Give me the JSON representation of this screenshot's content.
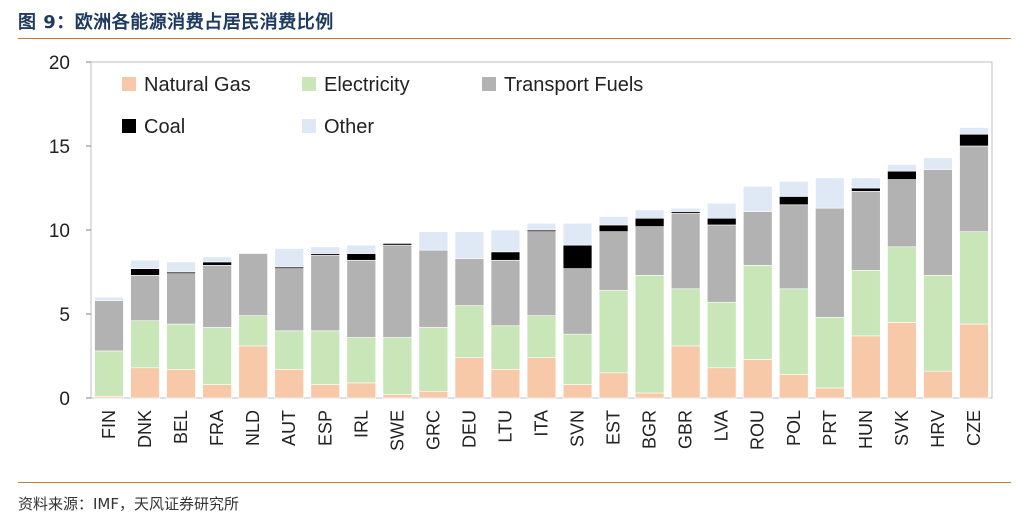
{
  "title": "图 9：欧洲各能源消费占居民消费比例",
  "source": "资料来源：IMF，天风证券研究所",
  "chart_data": {
    "type": "bar",
    "stacked": true,
    "categories": [
      "FIN",
      "DNK",
      "BEL",
      "FRA",
      "NLD",
      "AUT",
      "ESP",
      "IRL",
      "SWE",
      "GRC",
      "DEU",
      "LTU",
      "ITA",
      "SVN",
      "EST",
      "BGR",
      "GBR",
      "LVA",
      "ROU",
      "POL",
      "PRT",
      "HUN",
      "SVK",
      "HRV",
      "CZE"
    ],
    "series": [
      {
        "name": "Natural Gas",
        "color": "#f8c9a8",
        "values": [
          0.1,
          1.8,
          1.7,
          0.8,
          3.1,
          1.7,
          0.8,
          0.9,
          0.2,
          0.4,
          2.4,
          1.7,
          2.4,
          0.8,
          1.5,
          0.3,
          3.1,
          1.8,
          2.3,
          1.4,
          0.6,
          3.7,
          4.5,
          1.6,
          4.4
        ]
      },
      {
        "name": "Electricity",
        "color": "#c8e6b8",
        "values": [
          2.7,
          2.8,
          2.7,
          3.4,
          1.8,
          2.3,
          3.2,
          2.7,
          3.4,
          3.8,
          3.1,
          2.6,
          2.5,
          3.0,
          4.9,
          7.0,
          3.4,
          3.9,
          5.6,
          5.1,
          4.2,
          3.9,
          4.5,
          5.7,
          5.5
        ]
      },
      {
        "name": "Transport Fuels",
        "color": "#b2b2b2",
        "values": [
          3.0,
          2.7,
          3.0,
          3.7,
          3.7,
          3.7,
          4.5,
          4.6,
          5.5,
          4.6,
          2.8,
          3.9,
          5.0,
          3.9,
          3.5,
          2.9,
          4.5,
          4.6,
          3.2,
          5.0,
          6.5,
          4.7,
          4.0,
          6.3,
          5.1
        ]
      },
      {
        "name": "Coal",
        "color": "#000000",
        "values": [
          0.0,
          0.4,
          0.1,
          0.2,
          0.0,
          0.1,
          0.1,
          0.4,
          0.1,
          0.0,
          0.0,
          0.5,
          0.1,
          1.4,
          0.4,
          0.5,
          0.1,
          0.4,
          0.0,
          0.5,
          0.0,
          0.2,
          0.5,
          0.0,
          0.7
        ]
      },
      {
        "name": "Other",
        "color": "#dfe9f5",
        "values": [
          0.2,
          0.5,
          0.6,
          0.3,
          0.0,
          1.1,
          0.4,
          0.5,
          0.0,
          1.1,
          1.6,
          1.3,
          0.4,
          1.3,
          0.5,
          0.5,
          0.2,
          0.9,
          1.5,
          0.9,
          1.8,
          0.6,
          0.4,
          0.7,
          0.4
        ]
      }
    ],
    "ylim": [
      0,
      20
    ],
    "yticks": [
      0,
      5,
      10,
      15,
      20
    ],
    "legend_position": "top-left inside",
    "xlabel": "",
    "ylabel": ""
  }
}
